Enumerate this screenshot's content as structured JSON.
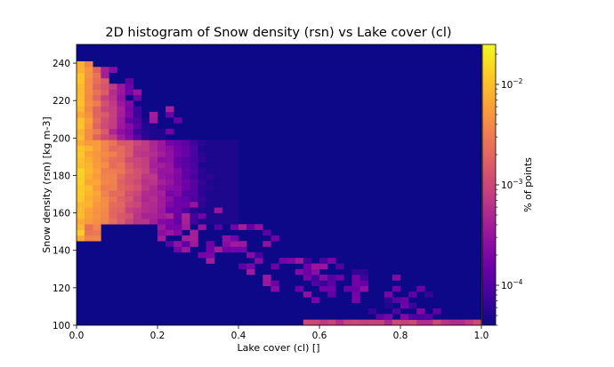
{
  "chart_data": {
    "type": "heatmap",
    "title": "2D histogram of Snow density (rsn) vs Lake cover (cl)",
    "xlabel": "Lake cover (cl) []",
    "ylabel": "Snow density (rsn) [kg m-3]",
    "colorbar_label": "% of points",
    "colormap": "plasma",
    "color_scale": "log",
    "color_range": [
      4e-05,
      0.025
    ],
    "empty_bin_color": "#0d0887",
    "xlim": [
      0.0,
      1.0
    ],
    "ylim": [
      100,
      250
    ],
    "x_bins": 50,
    "y_bins": 50,
    "x_ticks": [
      0.0,
      0.2,
      0.4,
      0.6,
      0.8,
      1.0
    ],
    "x_tick_labels": [
      "0.0",
      "0.2",
      "0.4",
      "0.6",
      "0.8",
      "1.0"
    ],
    "y_ticks": [
      100,
      120,
      140,
      160,
      180,
      200,
      220,
      240
    ],
    "y_tick_labels": [
      "100",
      "120",
      "140",
      "160",
      "180",
      "200",
      "220",
      "240"
    ],
    "colorbar_ticks": [
      0.0001,
      0.001,
      0.01
    ],
    "colorbar_tick_labels": [
      {
        "base": "10",
        "exp": "−4"
      },
      {
        "base": "10",
        "exp": "−3"
      },
      {
        "base": "10",
        "exp": "−2"
      }
    ],
    "grid": false,
    "distribution": {
      "core": {
        "x_range": [
          0.0,
          0.4
        ],
        "y_range": [
          153,
          200
        ],
        "peak": 0.015,
        "peak_y": 180
      },
      "upper_tail": {
        "x_range": [
          0.0,
          0.2
        ],
        "y_range": [
          200,
          241
        ],
        "peak": 0.012
      },
      "lower_tail": {
        "x_range": [
          0.0,
          0.02
        ],
        "y_range": [
          146,
          153
        ],
        "peak": 0.01
      },
      "diagonal_band": {
        "from": [
          0.2,
          155
        ],
        "to": [
          0.9,
          105
        ],
        "level": 0.00025
      },
      "bottom_row": {
        "x_range": [
          0.57,
          1.0
        ],
        "y_range": [
          100,
          103
        ],
        "level": 0.0008
      }
    }
  }
}
